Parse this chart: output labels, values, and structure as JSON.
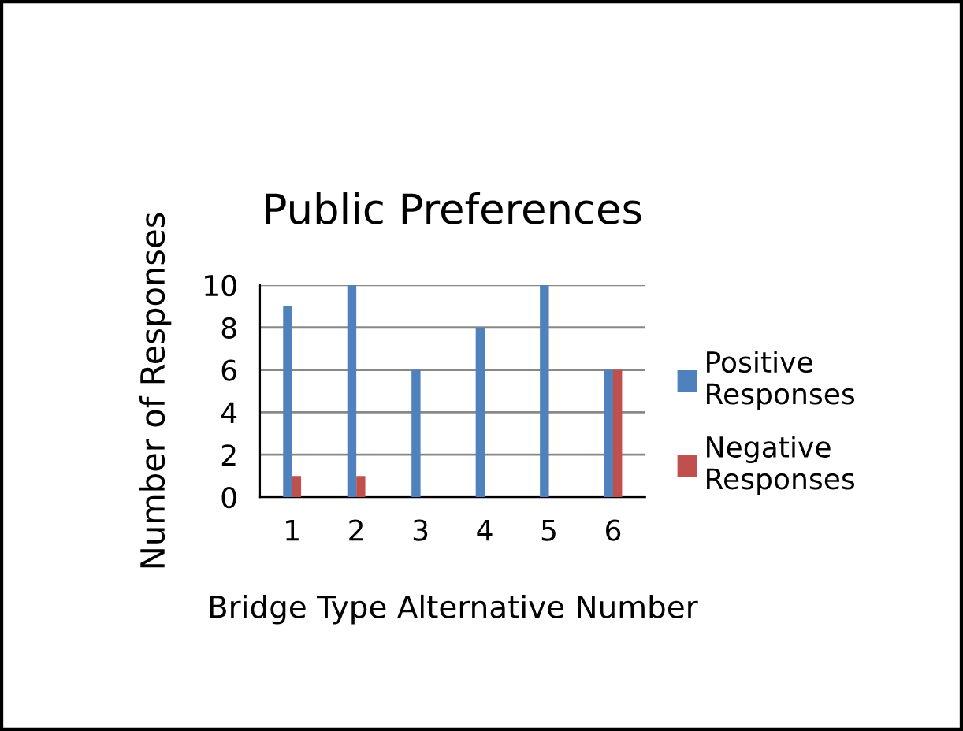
{
  "chart_data": {
    "type": "bar",
    "title": "Public Preferences",
    "xlabel": "Bridge Type Alternative Number",
    "ylabel": "Number of Responses",
    "categories": [
      "1",
      "2",
      "3",
      "4",
      "5",
      "6"
    ],
    "series": [
      {
        "name": "Positive\nResponses",
        "color": "#4f81bd",
        "values": [
          9,
          10,
          6,
          8,
          10,
          6
        ]
      },
      {
        "name": "Negative\nResponses",
        "color": "#c0504d",
        "values": [
          1,
          1,
          0,
          0,
          0,
          6
        ]
      }
    ],
    "ylim": [
      0,
      10
    ],
    "yticks": [
      0,
      2,
      4,
      6,
      8,
      10
    ],
    "grid": "y",
    "legend": "right"
  }
}
